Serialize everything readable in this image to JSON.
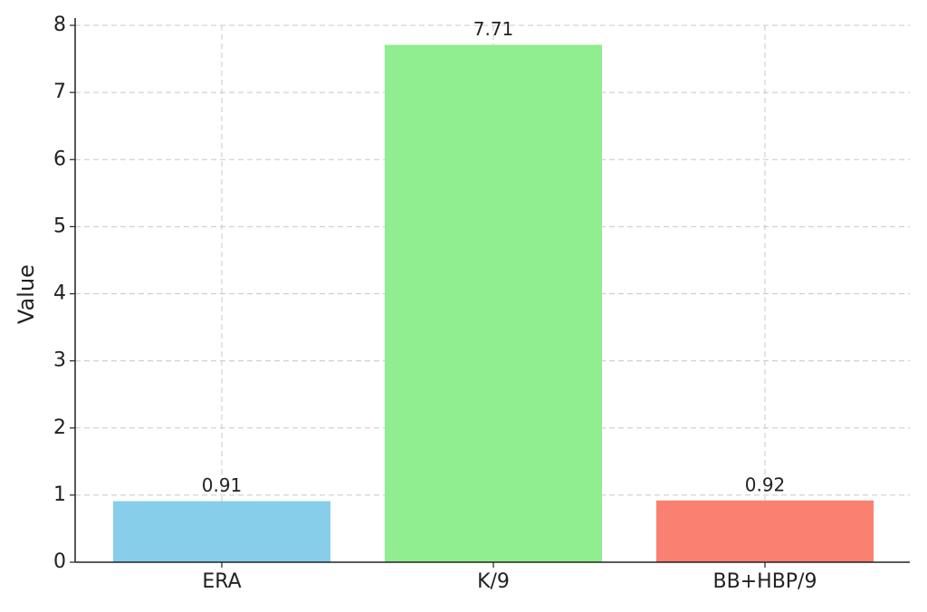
{
  "chart_data": {
    "type": "bar",
    "y_label": "Value",
    "categories": [
      "ERA",
      "K/9",
      "BB+HBP/9"
    ],
    "values": [
      0.91,
      7.71,
      0.92
    ],
    "colors": [
      "#87ceeb",
      "#90ee90",
      "#fa8072"
    ],
    "ylim": [
      0,
      8
    ],
    "yticks": [
      0,
      1,
      2,
      3,
      4,
      5,
      6,
      7,
      8
    ],
    "grid": true
  }
}
